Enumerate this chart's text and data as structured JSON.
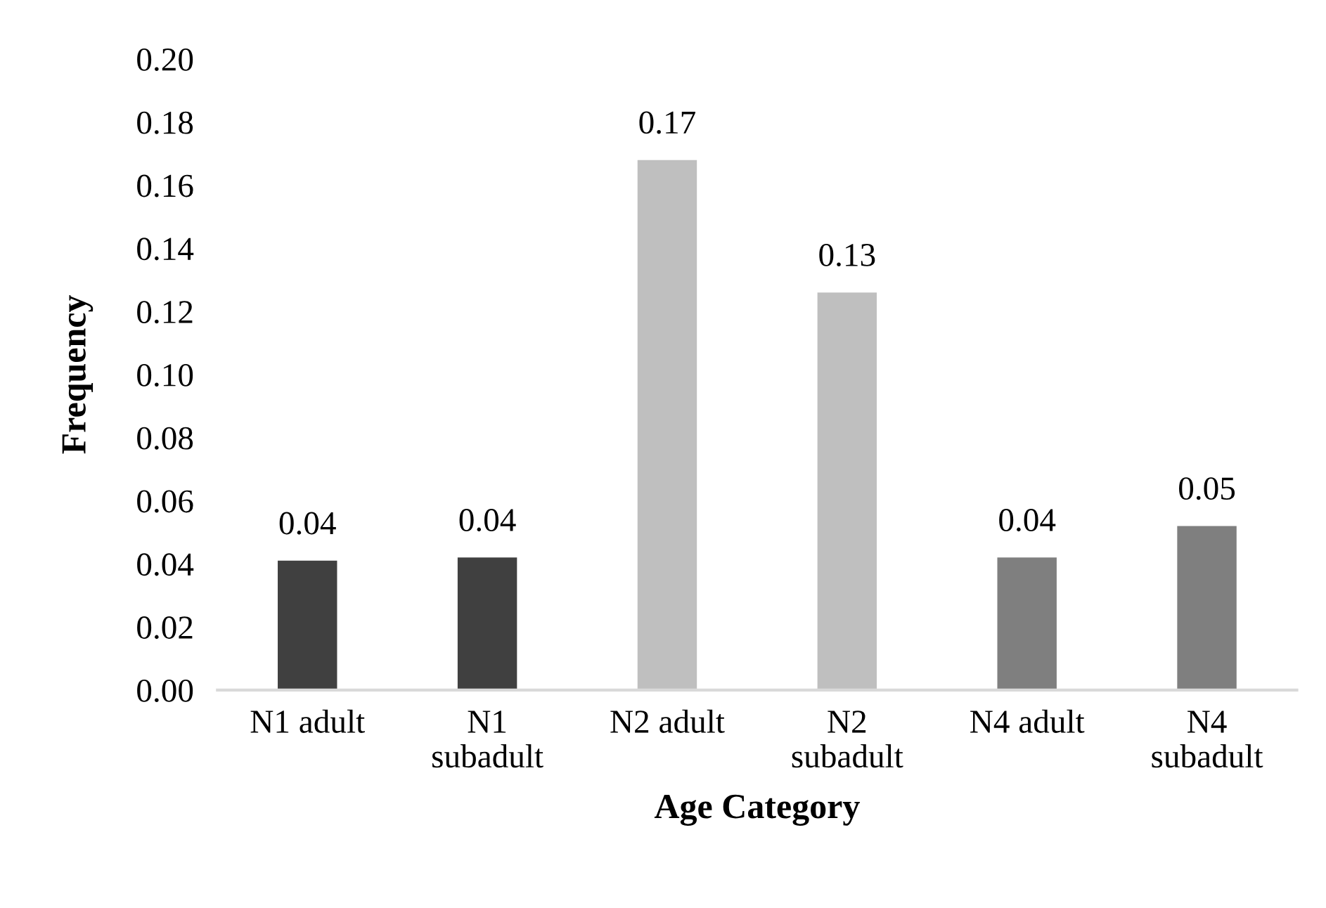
{
  "chart_data": {
    "type": "bar",
    "xlabel": "Age Category",
    "ylabel": "Frequency",
    "categories": [
      "N1 adult",
      "N1 subadult",
      "N2 adult",
      "N2 subadult",
      "N4 adult",
      "N4 subadult"
    ],
    "values": [
      0.041,
      0.042,
      0.168,
      0.126,
      0.042,
      0.052
    ],
    "colors": [
      "#404040",
      "#404040",
      "#bfbfbf",
      "#bfbfbf",
      "#7f7f7f",
      "#7f7f7f"
    ],
    "value_labels": [
      "0.04",
      "0.04",
      "0.17",
      "0.13",
      "0.04",
      "0.05"
    ],
    "ylim": [
      0,
      0.2
    ],
    "yticks": [
      {
        "value": 0,
        "label": "0.00"
      },
      {
        "value": 0.02,
        "label": "0.02"
      },
      {
        "value": 0.04,
        "label": "0.04"
      },
      {
        "value": 0.06,
        "label": "0.06"
      },
      {
        "value": 0.08,
        "label": "0.08"
      },
      {
        "value": 0.1,
        "label": "0.10"
      },
      {
        "value": 0.12,
        "label": "0.12"
      },
      {
        "value": 0.14,
        "label": "0.14"
      },
      {
        "value": 0.16,
        "label": "0.16"
      },
      {
        "value": 0.18,
        "label": "0.18"
      },
      {
        "value": 0.2,
        "label": "0.20"
      }
    ],
    "grid": false,
    "legend": false
  }
}
